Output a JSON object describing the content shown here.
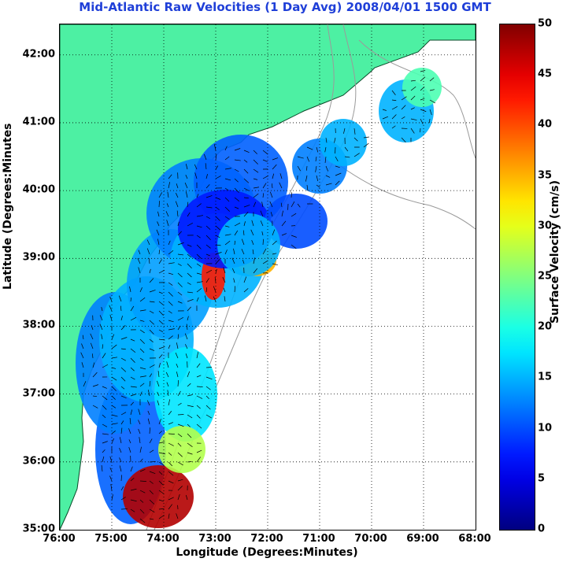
{
  "title": "Mid-Atlantic Raw Velocities (1 Day Avg) 2008/04/01 1500 GMT",
  "axes": {
    "xlabel": "Longitude (Degrees:Minutes)",
    "ylabel": "Latitude (Degrees:Minutes",
    "x_ticks": [
      "76:00",
      "75:00",
      "74:00",
      "73:00",
      "72:00",
      "71:00",
      "70:00",
      "69:00",
      "68:00"
    ],
    "y_ticks": [
      "35:00",
      "36:00",
      "37:00",
      "38:00",
      "39:00",
      "40:00",
      "41:00",
      "42:00"
    ]
  },
  "colorbar": {
    "title": "Surface Velocity (cm/s)",
    "ticks": [
      "0",
      "5",
      "10",
      "15",
      "20",
      "25",
      "30",
      "35",
      "40",
      "45",
      "50"
    ],
    "range": [
      0,
      50
    ],
    "colormap": "jet"
  },
  "colors": {
    "land": "#4df0a3",
    "title": "#1f3fd8",
    "grid": "#000000",
    "bathymetry": "#9a9a9a"
  }
}
